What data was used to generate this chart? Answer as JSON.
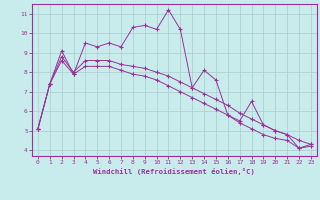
{
  "title": "",
  "xlabel": "Windchill (Refroidissement éolien,°C)",
  "background_color": "#c8ecec",
  "line_color": "#993399",
  "grid_color": "#aacccc",
  "xlim": [
    -0.5,
    23.5
  ],
  "ylim": [
    3.7,
    11.5
  ],
  "yticks": [
    4,
    5,
    6,
    7,
    8,
    9,
    10,
    11
  ],
  "xticks": [
    0,
    1,
    2,
    3,
    4,
    5,
    6,
    7,
    8,
    9,
    10,
    11,
    12,
    13,
    14,
    15,
    16,
    17,
    18,
    19,
    20,
    21,
    22,
    23
  ],
  "series1_x": [
    0,
    1,
    2,
    3,
    4,
    5,
    6,
    7,
    8,
    9,
    10,
    11,
    12,
    13,
    14,
    15,
    16,
    17,
    18,
    19,
    20,
    21,
    22,
    23
  ],
  "series1_y": [
    5.1,
    7.4,
    9.1,
    7.9,
    9.5,
    9.3,
    9.5,
    9.3,
    10.3,
    10.4,
    10.2,
    11.2,
    10.2,
    7.2,
    8.1,
    7.6,
    5.8,
    5.5,
    6.5,
    5.3,
    5.0,
    4.8,
    4.1,
    4.2
  ],
  "series2_x": [
    0,
    1,
    2,
    3,
    4,
    5,
    6,
    7,
    8,
    9,
    10,
    11,
    12,
    13,
    14,
    15,
    16,
    17,
    18,
    19,
    20,
    21,
    22,
    23
  ],
  "series2_y": [
    5.1,
    7.4,
    8.8,
    8.0,
    8.6,
    8.6,
    8.6,
    8.4,
    8.3,
    8.2,
    8.0,
    7.8,
    7.5,
    7.2,
    6.9,
    6.6,
    6.3,
    5.9,
    5.6,
    5.3,
    5.0,
    4.8,
    4.5,
    4.3
  ],
  "series3_x": [
    0,
    1,
    2,
    3,
    4,
    5,
    6,
    7,
    8,
    9,
    10,
    11,
    12,
    13,
    14,
    15,
    16,
    17,
    18,
    19,
    20,
    21,
    22,
    23
  ],
  "series3_y": [
    5.1,
    7.4,
    8.6,
    7.9,
    8.3,
    8.3,
    8.3,
    8.1,
    7.9,
    7.8,
    7.6,
    7.3,
    7.0,
    6.7,
    6.4,
    6.1,
    5.8,
    5.4,
    5.1,
    4.8,
    4.6,
    4.5,
    4.1,
    4.3
  ]
}
